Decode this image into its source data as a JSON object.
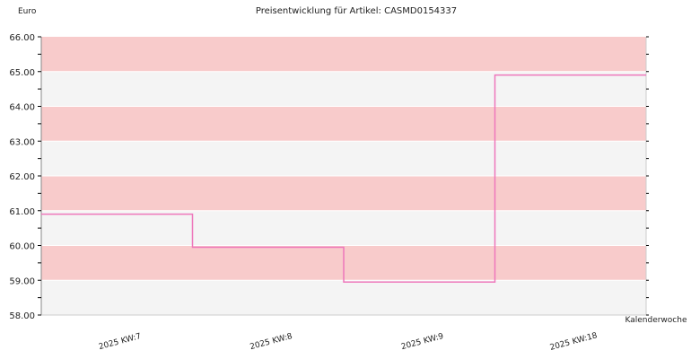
{
  "chart_data": {
    "type": "line",
    "step": true,
    "title": "Preisentwicklung für Artikel: CASMD0154337",
    "ylabel": "Euro",
    "xlabel": "Kalenderwoche",
    "ylim": [
      58.0,
      66.0
    ],
    "yticks": [
      "58.00",
      "59.00",
      "60.00",
      "61.00",
      "62.00",
      "63.00",
      "64.00",
      "65.00",
      "66.00"
    ],
    "categories": [
      "2025 KW:7",
      "2025 KW:8",
      "2025 KW:9",
      "2025 KW:18"
    ],
    "series": [
      {
        "values": [
          60.9,
          59.95,
          58.95,
          64.9
        ]
      }
    ],
    "grid": true,
    "legend": "none",
    "colors": {
      "line": "#ee77bb",
      "band_a": "#f8cbcb",
      "band_b": "#f4f4f4",
      "axis": "#000000",
      "gridline": "#ffffff"
    }
  }
}
